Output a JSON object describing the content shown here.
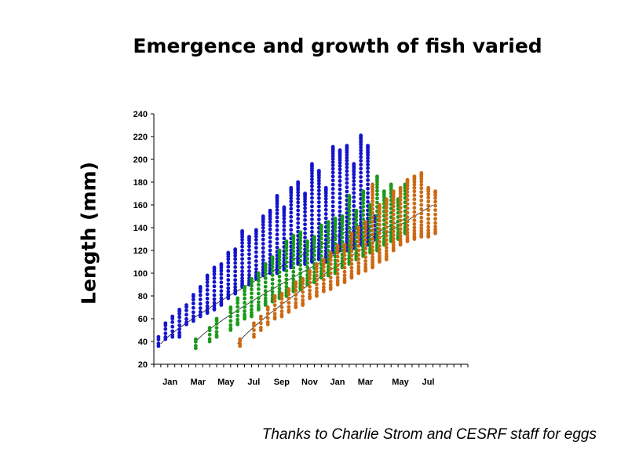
{
  "chart_data": {
    "type": "scatter",
    "title": "Emergence and growth of fish varied",
    "xlabel": "",
    "ylabel": "Length (mm)",
    "x_tick_labels": [
      "Jan",
      "Mar",
      "May",
      "Jul",
      "Sep",
      "Nov",
      "Jan",
      "Mar",
      "May",
      "Jul"
    ],
    "yticks": [
      20,
      40,
      60,
      80,
      100,
      120,
      140,
      160,
      180,
      200,
      220,
      240
    ],
    "ylim": [
      20,
      240
    ],
    "grid": false,
    "legend": "none",
    "series": [
      {
        "color": "#1414cc",
        "points": [
          {
            "x": 1,
            "min": 36,
            "max": 44
          },
          {
            "x": 2,
            "min": 42,
            "max": 56
          },
          {
            "x": 3,
            "min": 44,
            "max": 62
          },
          {
            "x": 4,
            "min": 44,
            "max": 68
          },
          {
            "x": 5,
            "min": 55,
            "max": 72
          },
          {
            "x": 6,
            "min": 58,
            "max": 81
          },
          {
            "x": 7,
            "min": 62,
            "max": 88
          },
          {
            "x": 8,
            "min": 65,
            "max": 98
          },
          {
            "x": 9,
            "min": 68,
            "max": 105
          },
          {
            "x": 10,
            "min": 72,
            "max": 108
          },
          {
            "x": 11,
            "min": 78,
            "max": 118
          },
          {
            "x": 12,
            "min": 82,
            "max": 121
          },
          {
            "x": 13,
            "min": 88,
            "max": 137
          },
          {
            "x": 14,
            "min": 90,
            "max": 132
          },
          {
            "x": 15,
            "min": 95,
            "max": 138
          },
          {
            "x": 16,
            "min": 98,
            "max": 150
          },
          {
            "x": 17,
            "min": 100,
            "max": 155
          },
          {
            "x": 18,
            "min": 100,
            "max": 168
          },
          {
            "x": 19,
            "min": 103,
            "max": 158
          },
          {
            "x": 20,
            "min": 105,
            "max": 175
          },
          {
            "x": 21,
            "min": 108,
            "max": 180
          },
          {
            "x": 22,
            "min": 108,
            "max": 170
          },
          {
            "x": 23,
            "min": 110,
            "max": 196
          },
          {
            "x": 24,
            "min": 112,
            "max": 190
          },
          {
            "x": 25,
            "min": 110,
            "max": 175
          },
          {
            "x": 26,
            "min": 118,
            "max": 211
          },
          {
            "x": 27,
            "min": 120,
            "max": 208
          },
          {
            "x": 28,
            "min": 120,
            "max": 212
          },
          {
            "x": 29,
            "min": 122,
            "max": 196
          },
          {
            "x": 30,
            "min": 125,
            "max": 221
          },
          {
            "x": 31,
            "min": 125,
            "max": 212
          },
          {
            "x": 32,
            "min": 130,
            "max": 150
          }
        ]
      },
      {
        "color": "#1a9a1a",
        "points": [
          {
            "x": 6,
            "min": 34,
            "max": 42
          },
          {
            "x": 8,
            "min": 40,
            "max": 52
          },
          {
            "x": 9,
            "min": 44,
            "max": 60
          },
          {
            "x": 11,
            "min": 50,
            "max": 70
          },
          {
            "x": 12,
            "min": 55,
            "max": 78
          },
          {
            "x": 13,
            "min": 60,
            "max": 88
          },
          {
            "x": 14,
            "min": 62,
            "max": 95
          },
          {
            "x": 15,
            "min": 68,
            "max": 100
          },
          {
            "x": 16,
            "min": 72,
            "max": 108
          },
          {
            "x": 17,
            "min": 75,
            "max": 114
          },
          {
            "x": 18,
            "min": 78,
            "max": 120
          },
          {
            "x": 19,
            "min": 80,
            "max": 128
          },
          {
            "x": 20,
            "min": 84,
            "max": 133
          },
          {
            "x": 21,
            "min": 86,
            "max": 136
          },
          {
            "x": 22,
            "min": 90,
            "max": 128
          },
          {
            "x": 23,
            "min": 92,
            "max": 132
          },
          {
            "x": 24,
            "min": 96,
            "max": 142
          },
          {
            "x": 25,
            "min": 98,
            "max": 145
          },
          {
            "x": 26,
            "min": 100,
            "max": 148
          },
          {
            "x": 27,
            "min": 105,
            "max": 150
          },
          {
            "x": 28,
            "min": 108,
            "max": 168
          },
          {
            "x": 29,
            "min": 112,
            "max": 155
          },
          {
            "x": 30,
            "min": 115,
            "max": 172
          },
          {
            "x": 31,
            "min": 118,
            "max": 160
          },
          {
            "x": 32,
            "min": 120,
            "max": 185
          },
          {
            "x": 33,
            "min": 125,
            "max": 172
          },
          {
            "x": 34,
            "min": 128,
            "max": 178
          },
          {
            "x": 35,
            "min": 130,
            "max": 165
          },
          {
            "x": 36,
            "min": 135,
            "max": 178
          }
        ]
      },
      {
        "color": "#cc6a14",
        "points": [
          {
            "x": 12,
            "min": 36,
            "max": 42
          },
          {
            "x": 14,
            "min": 44,
            "max": 56
          },
          {
            "x": 15,
            "min": 50,
            "max": 62
          },
          {
            "x": 16,
            "min": 55,
            "max": 70
          },
          {
            "x": 17,
            "min": 60,
            "max": 80
          },
          {
            "x": 18,
            "min": 62,
            "max": 82
          },
          {
            "x": 19,
            "min": 66,
            "max": 86
          },
          {
            "x": 20,
            "min": 70,
            "max": 92
          },
          {
            "x": 21,
            "min": 72,
            "max": 95
          },
          {
            "x": 22,
            "min": 78,
            "max": 102
          },
          {
            "x": 23,
            "min": 80,
            "max": 108
          },
          {
            "x": 24,
            "min": 84,
            "max": 112
          },
          {
            "x": 25,
            "min": 86,
            "max": 118
          },
          {
            "x": 26,
            "min": 90,
            "max": 124
          },
          {
            "x": 27,
            "min": 92,
            "max": 125
          },
          {
            "x": 28,
            "min": 96,
            "max": 135
          },
          {
            "x": 29,
            "min": 100,
            "max": 140
          },
          {
            "x": 30,
            "min": 102,
            "max": 145
          },
          {
            "x": 31,
            "min": 105,
            "max": 178
          },
          {
            "x": 32,
            "min": 110,
            "max": 160
          },
          {
            "x": 33,
            "min": 112,
            "max": 165
          },
          {
            "x": 34,
            "min": 120,
            "max": 172
          },
          {
            "x": 35,
            "min": 125,
            "max": 175
          },
          {
            "x": 36,
            "min": 128,
            "max": 182
          },
          {
            "x": 37,
            "min": 130,
            "max": 185
          },
          {
            "x": 38,
            "min": 132,
            "max": 188
          },
          {
            "x": 39,
            "min": 132,
            "max": 175
          },
          {
            "x": 40,
            "min": 135,
            "max": 172
          }
        ]
      }
    ],
    "trendlines": [
      {
        "color": "#1414cc",
        "x_range": [
          1,
          32
        ],
        "y_range": [
          38,
          150
        ]
      },
      {
        "color": "#1a9a1a",
        "x_range": [
          6,
          36
        ],
        "y_range": [
          40,
          148
        ]
      },
      {
        "color": "#cc6a14",
        "x_range": [
          12,
          40
        ],
        "y_range": [
          38,
          160
        ]
      }
    ]
  },
  "credit": "Thanks to Charlie Strom and CESRF staff for eggs"
}
